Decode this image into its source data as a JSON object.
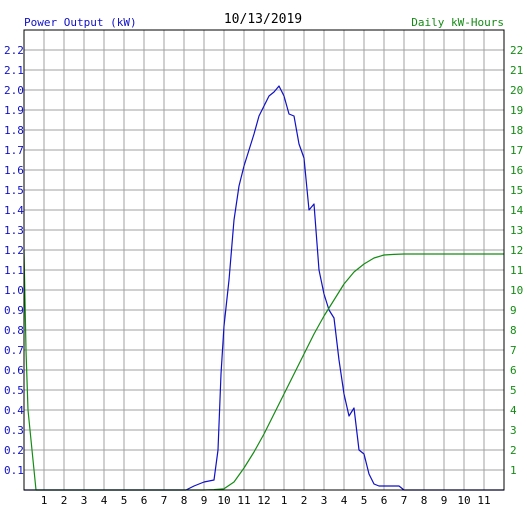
{
  "chart_data": {
    "type": "line",
    "title": "10/13/2019",
    "left_axis_label": "Power Output (kW)",
    "right_axis_label": "Daily kW-Hours",
    "x_tick_labels": [
      "1",
      "2",
      "3",
      "4",
      "5",
      "6",
      "7",
      "8",
      "9",
      "10",
      "11",
      "12",
      "1",
      "2",
      "3",
      "4",
      "5",
      "6",
      "7",
      "8",
      "9",
      "10",
      "11"
    ],
    "x_range_hours": [
      0,
      24
    ],
    "left_ylim": [
      0,
      2.3
    ],
    "left_ticks": [
      0.1,
      0.2,
      0.3,
      0.4,
      0.5,
      0.6,
      0.7,
      0.8,
      0.9,
      1.0,
      1.1,
      1.2,
      1.3,
      1.4,
      1.5,
      1.6,
      1.7,
      1.8,
      1.9,
      2.0,
      2.1,
      2.2
    ],
    "right_ylim": [
      0,
      23
    ],
    "right_ticks": [
      1,
      2,
      3,
      4,
      5,
      6,
      7,
      8,
      9,
      10,
      11,
      12,
      13,
      14,
      15,
      16,
      17,
      18,
      19,
      20,
      21,
      22
    ],
    "grid": true,
    "colors": {
      "power": "#1010c8",
      "energy": "#148c14",
      "grid": "#a0a0a0",
      "title": "#000000"
    },
    "series": [
      {
        "axis": "left",
        "x": [
          0,
          8.1,
          8.5,
          9.0,
          9.5,
          9.7,
          9.85,
          10.0,
          10.25,
          10.5,
          10.75,
          11.0,
          11.25,
          11.5,
          11.75,
          12.0,
          12.25,
          12.5,
          12.75,
          13.0,
          13.25,
          13.5,
          13.75,
          14.0,
          14.25,
          14.5,
          14.75,
          15.0,
          15.25,
          15.5,
          15.75,
          16.0,
          16.25,
          16.5,
          16.75,
          17.0,
          17.25,
          17.5,
          17.75,
          18.0,
          18.25,
          18.5,
          18.75,
          19.0,
          19.5,
          19.75,
          20.0,
          24
        ],
        "y": [
          0,
          0,
          0.02,
          0.04,
          0.05,
          0.2,
          0.58,
          0.82,
          1.05,
          1.35,
          1.52,
          1.62,
          1.7,
          1.78,
          1.87,
          1.92,
          1.97,
          1.99,
          2.02,
          1.97,
          1.88,
          1.87,
          1.73,
          1.66,
          1.4,
          1.43,
          1.1,
          0.98,
          0.9,
          0.86,
          0.65,
          0.48,
          0.37,
          0.41,
          0.2,
          0.18,
          0.08,
          0.03,
          0.02,
          0.02,
          0.02,
          0.02,
          0.02,
          0,
          0,
          0,
          0,
          0
        ]
      },
      {
        "axis": "right",
        "x": [
          0,
          0.05,
          0.1,
          0.2,
          0.4,
          0.6,
          8.5,
          9.0,
          9.5,
          10.0,
          10.5,
          11.0,
          11.5,
          12.0,
          12.5,
          13.0,
          13.5,
          14.0,
          14.5,
          15.0,
          15.5,
          16.0,
          16.5,
          17.0,
          17.5,
          18.0,
          18.5,
          19.0,
          24
        ],
        "y": [
          12,
          9.5,
          7,
          4,
          2,
          0,
          0,
          0,
          0.02,
          0.06,
          0.4,
          1.1,
          1.9,
          2.8,
          3.8,
          4.8,
          5.8,
          6.8,
          7.8,
          8.7,
          9.5,
          10.3,
          10.9,
          11.3,
          11.6,
          11.75,
          11.78,
          11.8,
          11.8
        ]
      }
    ]
  }
}
